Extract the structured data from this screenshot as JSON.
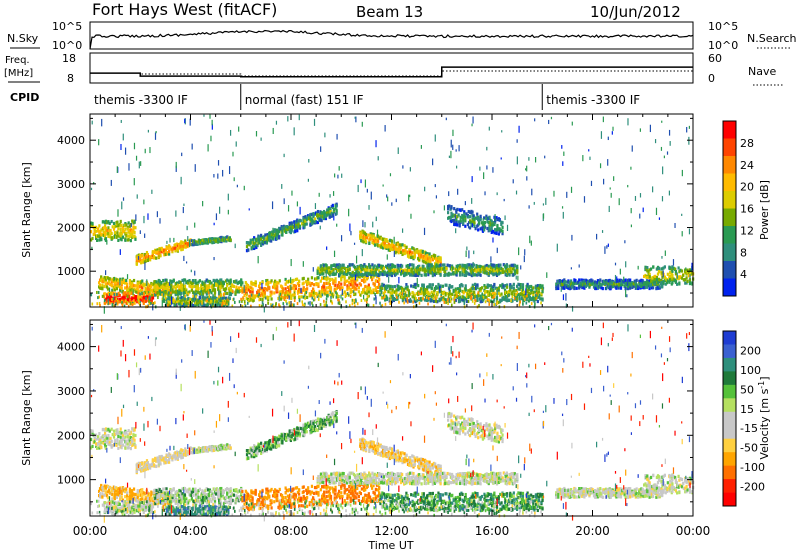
{
  "header": {
    "radar": "Fort Hays West (fitACF)",
    "beam": "Beam 13",
    "date": "10/Jun/2012"
  },
  "noise_panel": {
    "left_label": "N.Sky",
    "left_ticks": [
      "10^5",
      "10^0"
    ],
    "right_ticks": [
      "10^5",
      "10^0"
    ],
    "right_label": "N.Search"
  },
  "freq_panel": {
    "left_label_line1": "Freq.",
    "left_label_line2": "[MHz]",
    "left_ticks": [
      "18",
      "8"
    ],
    "right_ticks": [
      "60",
      "0"
    ],
    "right_label": "Nave",
    "freq_steps": [
      {
        "t0": 0,
        "t1": 2.0,
        "mhz": 11.3
      },
      {
        "t0": 2.0,
        "t1": 6.0,
        "mhz": 10.3
      },
      {
        "t0": 6.0,
        "t1": 14.0,
        "mhz": 10.1
      },
      {
        "t0": 14.0,
        "t1": 24,
        "mhz": 13.3
      }
    ]
  },
  "cpid": {
    "label": "CPID",
    "segments": [
      {
        "start": 0,
        "end": 6,
        "text": "themis -3300 IF"
      },
      {
        "start": 6,
        "end": 18,
        "text": "normal (fast) 151 IF"
      },
      {
        "start": 18,
        "end": 24,
        "text": "themis -3300 IF"
      }
    ]
  },
  "power_colorbar": {
    "label": "Power [dB]",
    "ticks": [
      "28",
      "24",
      "20",
      "16",
      "12",
      "8",
      "4"
    ],
    "colors": [
      "#ff0000",
      "#ff4400",
      "#ff8800",
      "#ffbb00",
      "#ddcc00",
      "#77aa00",
      "#2a9a52",
      "#2f8f7c",
      "#1f4fb0",
      "#0022ee"
    ]
  },
  "velocity_colorbar": {
    "label": "Velocity [m s",
    "label_exp": "-1",
    "label_close": "]",
    "ticks": [
      "200",
      "100",
      "50",
      "15",
      "-15",
      "-50",
      "-100",
      "-200"
    ],
    "colors": [
      "#1e3cd2",
      "#3a60d0",
      "#2e8f7c",
      "#1f7a3a",
      "#55c13a",
      "#b5e060",
      "#c8c8c8",
      "#c8c8c8",
      "#ffd040",
      "#ffa500",
      "#ff7000",
      "#ff2000",
      "#ff0000"
    ]
  },
  "chart_data": [
    {
      "type": "heatmap",
      "title": "",
      "xlabel": "Time UT",
      "ylabel": "Slant Range [km]",
      "xlim": [
        0,
        24
      ],
      "ylim": [
        180,
        4600
      ],
      "x_ticks": [
        "00:00",
        "04:00",
        "08:00",
        "12:00",
        "16:00",
        "20:00",
        "00:00"
      ],
      "y_ticks": [
        "1000",
        "2000",
        "3000",
        "4000"
      ],
      "y_tick_values": [
        1000,
        2000,
        3000,
        4000
      ],
      "bands": [
        {
          "t0": 0.0,
          "t1": 1.8,
          "r0": 1700,
          "r1": 2150,
          "dr": 0,
          "power": 16,
          "velocity": 0
        },
        {
          "t0": 1.8,
          "t1": 4.0,
          "r0": 1150,
          "r1": 1350,
          "dr": 400,
          "power": 20,
          "velocity": -10
        },
        {
          "t0": 4.0,
          "t1": 5.6,
          "r0": 1600,
          "r1": 1700,
          "dr": 100,
          "power": 12,
          "velocity": 0
        },
        {
          "t0": 6.2,
          "t1": 9.8,
          "r0": 1450,
          "r1": 1700,
          "dr": 850,
          "power": 10,
          "velocity": 20
        },
        {
          "t0": 10.7,
          "t1": 14.0,
          "r0": 1700,
          "r1": 1950,
          "dr": -650,
          "power": 18,
          "velocity": -20
        },
        {
          "t0": 14.2,
          "t1": 16.4,
          "r0": 2100,
          "r1": 2500,
          "dr": -300,
          "power": 8,
          "velocity": 0
        },
        {
          "t0": 0.3,
          "t1": 3.2,
          "r0": 600,
          "r1": 900,
          "dr": -200,
          "power": 18,
          "velocity": -30
        },
        {
          "t0": 2.5,
          "t1": 6.0,
          "r0": 450,
          "r1": 800,
          "dr": 0,
          "power": 14,
          "velocity": 10
        },
        {
          "t0": 6.0,
          "t1": 11.5,
          "r0": 300,
          "r1": 750,
          "dr": 200,
          "power": 20,
          "velocity": -60
        },
        {
          "t0": 9.0,
          "t1": 17.0,
          "r0": 900,
          "r1": 1150,
          "dr": 0,
          "power": 12,
          "velocity": 0
        },
        {
          "t0": 11.5,
          "t1": 18.0,
          "r0": 300,
          "r1": 700,
          "dr": 0,
          "power": 12,
          "velocity": 30
        },
        {
          "t0": 18.5,
          "t1": 22.8,
          "r0": 600,
          "r1": 800,
          "dr": 0,
          "power": 8,
          "velocity": 0
        },
        {
          "t0": 22.0,
          "t1": 24.0,
          "r0": 700,
          "r1": 1100,
          "dr": 0,
          "power": 14,
          "velocity": 0
        },
        {
          "t0": 0.5,
          "t1": 2.5,
          "r0": 250,
          "r1": 500,
          "dr": 0,
          "power": 26,
          "velocity": 0
        },
        {
          "t0": 3.0,
          "t1": 5.5,
          "r0": 200,
          "r1": 400,
          "dr": 0,
          "power": 12,
          "velocity": 60
        }
      ]
    },
    {
      "type": "heatmap",
      "title": "",
      "xlabel": "Time UT",
      "ylabel": "Slant Range [km]",
      "xlim": [
        0,
        24
      ],
      "ylim": [
        180,
        4600
      ],
      "x_ticks": [
        "00:00",
        "04:00",
        "08:00",
        "12:00",
        "16:00",
        "20:00",
        "00:00"
      ],
      "y_ticks": [
        "1000",
        "2000",
        "3000",
        "4000"
      ],
      "y_tick_values": [
        1000,
        2000,
        3000,
        4000
      ]
    }
  ]
}
